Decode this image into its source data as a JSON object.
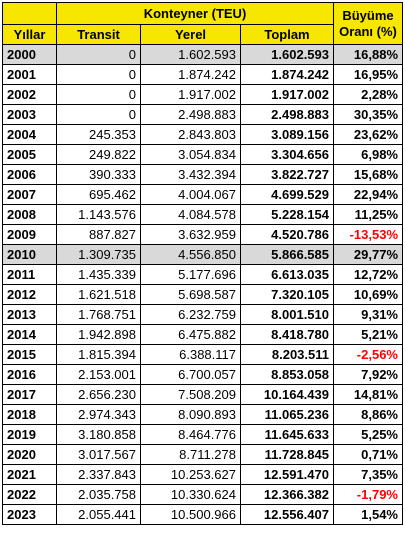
{
  "header": {
    "group_title": "Konteyner (TEU)",
    "growth_title": "Büyüme Oranı (%)",
    "columns": [
      "Yıllar",
      "Transit",
      "Yerel",
      "Toplam"
    ]
  },
  "colors": {
    "header_bg": "#f7e600",
    "shaded_row_bg": "#d9d9d9",
    "negative_text": "#ff0000"
  },
  "rows": [
    {
      "year": "2000",
      "transit": "0",
      "yerel": "1.602.593",
      "toplam": "1.602.593",
      "growth": "16,88%"
    },
    {
      "year": "2001",
      "transit": "0",
      "yerel": "1.874.242",
      "toplam": "1.874.242",
      "growth": "16,95%"
    },
    {
      "year": "2002",
      "transit": "0",
      "yerel": "1.917.002",
      "toplam": "1.917.002",
      "growth": "2,28%"
    },
    {
      "year": "2003",
      "transit": "0",
      "yerel": "2.498.883",
      "toplam": "2.498.883",
      "growth": "30,35%"
    },
    {
      "year": "2004",
      "transit": "245.353",
      "yerel": "2.843.803",
      "toplam": "3.089.156",
      "growth": "23,62%"
    },
    {
      "year": "2005",
      "transit": "249.822",
      "yerel": "3.054.834",
      "toplam": "3.304.656",
      "growth": "6,98%"
    },
    {
      "year": "2006",
      "transit": "390.333",
      "yerel": "3.432.394",
      "toplam": "3.822.727",
      "growth": "15,68%"
    },
    {
      "year": "2007",
      "transit": "695.462",
      "yerel": "4.004.067",
      "toplam": "4.699.529",
      "growth": "22,94%"
    },
    {
      "year": "2008",
      "transit": "1.143.576",
      "yerel": "4.084.578",
      "toplam": "5.228.154",
      "growth": "11,25%"
    },
    {
      "year": "2009",
      "transit": "887.827",
      "yerel": "3.632.959",
      "toplam": "4.520.786",
      "growth": "-13,53%"
    },
    {
      "year": "2010",
      "transit": "1.309.735",
      "yerel": "4.556.850",
      "toplam": "5.866.585",
      "growth": "29,77%"
    },
    {
      "year": "2011",
      "transit": "1.435.339",
      "yerel": "5.177.696",
      "toplam": "6.613.035",
      "growth": "12,72%"
    },
    {
      "year": "2012",
      "transit": "1.621.518",
      "yerel": "5.698.587",
      "toplam": "7.320.105",
      "growth": "10,69%"
    },
    {
      "year": "2013",
      "transit": "1.768.751",
      "yerel": "6.232.759",
      "toplam": "8.001.510",
      "growth": "9,31%"
    },
    {
      "year": "2014",
      "transit": "1.942.898",
      "yerel": "6.475.882",
      "toplam": "8.418.780",
      "growth": "5,21%"
    },
    {
      "year": "2015",
      "transit": "1.815.394",
      "yerel": "6.388.117",
      "toplam": "8.203.511",
      "growth": "-2,56%"
    },
    {
      "year": "2016",
      "transit": "2.153.001",
      "yerel": "6.700.057",
      "toplam": "8.853.058",
      "growth": "7,92%"
    },
    {
      "year": "2017",
      "transit": "2.656.230",
      "yerel": "7.508.209",
      "toplam": "10.164.439",
      "growth": "14,81%"
    },
    {
      "year": "2018",
      "transit": "2.974.343",
      "yerel": "8.090.893",
      "toplam": "11.065.236",
      "growth": "8,86%"
    },
    {
      "year": "2019",
      "transit": "3.180.858",
      "yerel": "8.464.776",
      "toplam": "11.645.633",
      "growth": "5,25%"
    },
    {
      "year": "2020",
      "transit": "3.017.567",
      "yerel": "8.711.278",
      "toplam": "11.728.845",
      "growth": "0,71%"
    },
    {
      "year": "2021",
      "transit": "2.337.843",
      "yerel": "10.253.627",
      "toplam": "12.591.470",
      "growth": "7,35%"
    },
    {
      "year": "2022",
      "transit": "2.035.758",
      "yerel": "10.330.624",
      "toplam": "12.366.382",
      "growth": "-1,79%"
    },
    {
      "year": "2023",
      "transit": "2.055.441",
      "yerel": "10.500.966",
      "toplam": "12.556.407",
      "growth": "1,54%"
    }
  ]
}
